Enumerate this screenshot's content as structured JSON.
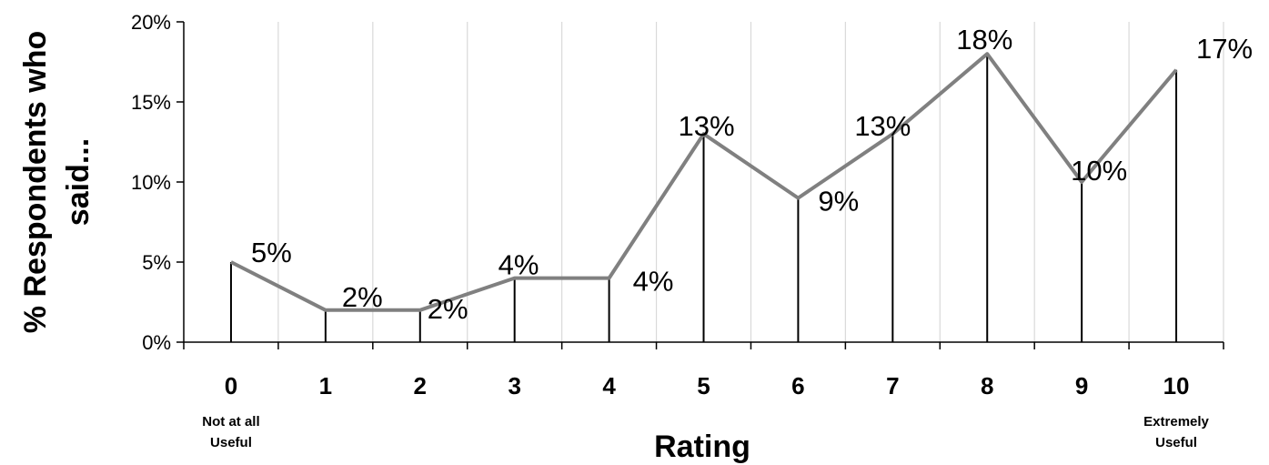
{
  "chart_data": {
    "type": "line",
    "title": "",
    "xlabel": "Rating",
    "ylabel_lines": [
      "% Respondents who",
      "said..."
    ],
    "categories": [
      "0",
      "1",
      "2",
      "3",
      "4",
      "5",
      "6",
      "7",
      "8",
      "9",
      "10"
    ],
    "values": [
      5,
      2,
      2,
      4,
      4,
      13,
      9,
      13,
      18,
      10,
      17
    ],
    "data_labels": [
      "5%",
      "2%",
      "2%",
      "4%",
      "4%",
      "13%",
      "9%",
      "13%",
      "18%",
      "10%",
      "17%"
    ],
    "ylim": [
      0,
      20
    ],
    "yticks": [
      0,
      5,
      10,
      15,
      20
    ],
    "ytick_labels": [
      "0%",
      "5%",
      "10%",
      "15%",
      "20%"
    ],
    "grid": "vertical",
    "drop_lines": true,
    "category_notes": {
      "0": [
        "Not at all",
        "Useful"
      ],
      "10": [
        "Extremely",
        "Useful"
      ]
    },
    "colors": {
      "line": "#808080",
      "drop": "#000000",
      "grid": "#d9d9d9",
      "axis": "#000000"
    }
  }
}
